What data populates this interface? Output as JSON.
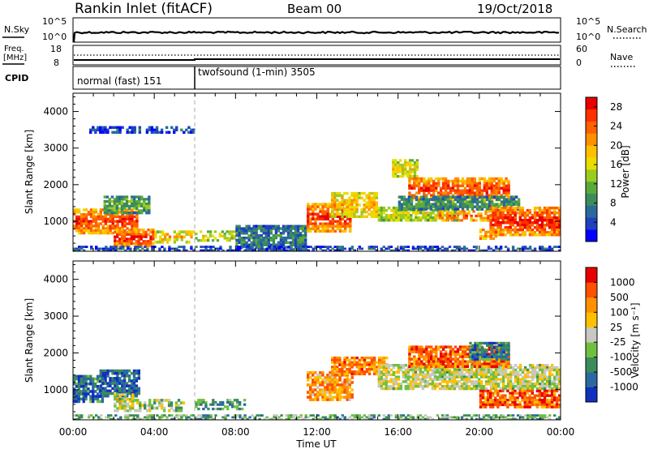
{
  "header": {
    "station": "Rankin Inlet (fitACF)",
    "beam": "Beam 00",
    "date": "19/Oct/2018"
  },
  "nsky_panel": {
    "left_label": "N.Sky",
    "right_label": "N.Search",
    "left_ticks": [
      "10^5",
      "10^0"
    ],
    "right_ticks": [
      "10^5",
      "10^0"
    ]
  },
  "freq_panel": {
    "left_label": "Freq.",
    "left_unit": "[MHz]",
    "right_label": "Nave",
    "left_ticks": [
      "18",
      "8"
    ],
    "right_ticks": [
      "60",
      "0"
    ]
  },
  "cpid_panel": {
    "label": "CPID",
    "modes": [
      {
        "name": "normal (fast) 151",
        "start_hour": 0,
        "end_hour": 6
      },
      {
        "name": "twofsound (1-min) 3505",
        "start_hour": 6,
        "end_hour": 24
      }
    ]
  },
  "chart_data": [
    {
      "type": "heatmap",
      "title": "",
      "xlabel": "Time UT",
      "ylabel": "Slant Range [km]",
      "xlim": [
        0,
        24
      ],
      "ylim": [
        180,
        4500
      ],
      "x_tick_labels": [
        "00:00",
        "04:00",
        "08:00",
        "12:00",
        "16:00",
        "20:00",
        "00:00"
      ],
      "y_ticks": [
        1000,
        2000,
        3000,
        4000
      ],
      "colorbar": {
        "label": "Power [dB]",
        "ticks": [
          "4",
          "8",
          "12",
          "16",
          "20",
          "24",
          "28"
        ],
        "colors": [
          "#0000ff",
          "#2040c0",
          "#2a6a9a",
          "#3c8c5a",
          "#5aaa3a",
          "#9acc20",
          "#e8dc00",
          "#ffc000",
          "#ff9000",
          "#ff6000",
          "#ff3000",
          "#e80000"
        ],
        "range": [
          0,
          30
        ]
      },
      "scatter_regions": [
        {
          "t0": 0,
          "t1": 3.2,
          "r0": 650,
          "r1": 1350,
          "level": 0.8
        },
        {
          "t0": 2.0,
          "t1": 4.0,
          "r0": 300,
          "r1": 800,
          "level": 0.85
        },
        {
          "t0": 1.5,
          "t1": 3.8,
          "r0": 1200,
          "r1": 1700,
          "level": 0.35
        },
        {
          "t0": 4.0,
          "t1": 6.0,
          "r0": 400,
          "r1": 750,
          "level": 0.6
        },
        {
          "t0": 6.0,
          "t1": 8.0,
          "r0": 450,
          "r1": 750,
          "level": 0.5
        },
        {
          "t0": 8.0,
          "t1": 11.5,
          "r0": 200,
          "r1": 900,
          "level": 0.25
        },
        {
          "t0": 11.5,
          "t1": 13.7,
          "r0": 700,
          "r1": 1500,
          "level": 0.8
        },
        {
          "t0": 12.7,
          "t1": 15.0,
          "r0": 1100,
          "r1": 1800,
          "level": 0.6
        },
        {
          "t0": 15.0,
          "t1": 19.0,
          "r0": 1000,
          "r1": 1400,
          "level": 0.5
        },
        {
          "t0": 15.7,
          "t1": 17.0,
          "r0": 2200,
          "r1": 2700,
          "level": 0.55
        },
        {
          "t0": 16.5,
          "t1": 21.5,
          "r0": 1550,
          "r1": 2200,
          "level": 0.8
        },
        {
          "t0": 16.0,
          "t1": 22.0,
          "r0": 1300,
          "r1": 1700,
          "level": 0.3
        },
        {
          "t0": 18.0,
          "t1": 21.8,
          "r0": 1000,
          "r1": 1300,
          "level": 0.75
        },
        {
          "t0": 20.5,
          "t1": 24.0,
          "r0": 600,
          "r1": 1400,
          "level": 0.85
        },
        {
          "t0": 20.0,
          "t1": 21.0,
          "r0": 500,
          "r1": 800,
          "level": 0.75
        },
        {
          "t0": 0,
          "t1": 24,
          "r0": 180,
          "r1": 330,
          "level": 0.15
        },
        {
          "t0": 0.8,
          "t1": 6.0,
          "r0": 3400,
          "r1": 3600,
          "level": 0.15
        }
      ]
    },
    {
      "type": "heatmap",
      "title": "",
      "xlabel": "Time UT",
      "ylabel": "Slant Range [km]",
      "xlim": [
        0,
        24
      ],
      "ylim": [
        180,
        4500
      ],
      "x_tick_labels": [
        "00:00",
        "04:00",
        "08:00",
        "12:00",
        "16:00",
        "20:00",
        "00:00"
      ],
      "y_ticks": [
        1000,
        2000,
        3000,
        4000
      ],
      "colorbar": {
        "label": "Velocity [m s⁻¹]",
        "ticks": [
          "1000",
          "500",
          "100",
          "25",
          "-25",
          "-100",
          "-500",
          "-1000"
        ],
        "colors": [
          "#1030c0",
          "#2a6aa0",
          "#3c8c5a",
          "#70c040",
          "#c8c8c0",
          "#ffc000",
          "#ff9000",
          "#ff5000",
          "#e80000"
        ],
        "range": [
          -1000,
          1000
        ]
      },
      "scatter_regions": [
        {
          "t0": 0,
          "t1": 1.5,
          "r0": 650,
          "r1": 1400,
          "level": 0.2
        },
        {
          "t0": 1.3,
          "t1": 3.3,
          "r0": 800,
          "r1": 1550,
          "level": 0.15
        },
        {
          "t0": 2.0,
          "t1": 3.0,
          "r0": 400,
          "r1": 900,
          "level": 0.5
        },
        {
          "t0": 3.0,
          "t1": 5.5,
          "r0": 400,
          "r1": 750,
          "level": 0.45
        },
        {
          "t0": 6.0,
          "t1": 8.5,
          "r0": 450,
          "r1": 750,
          "level": 0.3
        },
        {
          "t0": 11.5,
          "t1": 13.8,
          "r0": 700,
          "r1": 1500,
          "level": 0.7
        },
        {
          "t0": 12.7,
          "t1": 15.5,
          "r0": 1400,
          "r1": 1900,
          "level": 0.75
        },
        {
          "t0": 15.0,
          "t1": 24.0,
          "r0": 1000,
          "r1": 1700,
          "level": 0.5
        },
        {
          "t0": 16.5,
          "t1": 21.5,
          "r0": 1600,
          "r1": 2200,
          "level": 0.8
        },
        {
          "t0": 19.5,
          "t1": 21.5,
          "r0": 1800,
          "r1": 2300,
          "level": 0.2
        },
        {
          "t0": 20.0,
          "t1": 24.0,
          "r0": 500,
          "r1": 1000,
          "level": 0.8
        },
        {
          "t0": 0,
          "t1": 24,
          "r0": 180,
          "r1": 330,
          "level": 0.35
        }
      ]
    }
  ]
}
